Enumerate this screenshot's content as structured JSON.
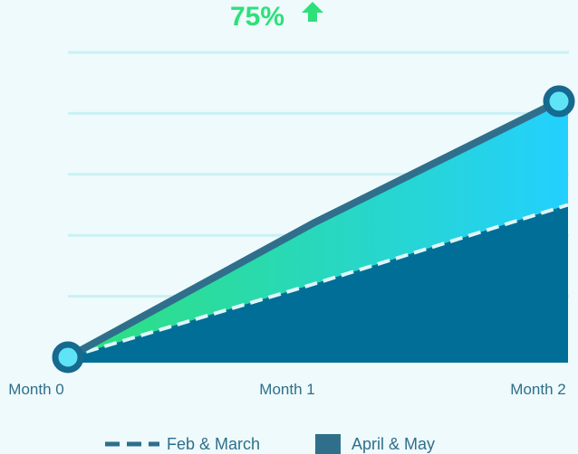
{
  "headline": {
    "value": "75%",
    "icon": "arrow-up-icon",
    "color": "#2ee07a"
  },
  "chart_data": {
    "type": "area",
    "title": "",
    "xlabel": "",
    "ylabel": "",
    "categories": [
      "Month 0",
      "Month 1",
      "Month 2"
    ],
    "x": [
      0,
      1,
      2
    ],
    "ylim": [
      0,
      5
    ],
    "grid": true,
    "legend_position": "bottom",
    "series": [
      {
        "name": "Feb & March",
        "style": "dashed-line-filled",
        "values": [
          0,
          1.2,
          2.5
        ],
        "color": "#006e96"
      },
      {
        "name": "April & May",
        "style": "area",
        "values": [
          0,
          2.2,
          4.2
        ],
        "color_start": "#2ee07a",
        "color_end": "#23d0ff",
        "outline": "#2f6f8c"
      }
    ],
    "legend": [
      {
        "label": "Feb & March",
        "marker": "dashed-line",
        "color": "#2f6f8c"
      },
      {
        "label": "April & May",
        "marker": "square",
        "color": "#2f6f8c"
      }
    ]
  }
}
